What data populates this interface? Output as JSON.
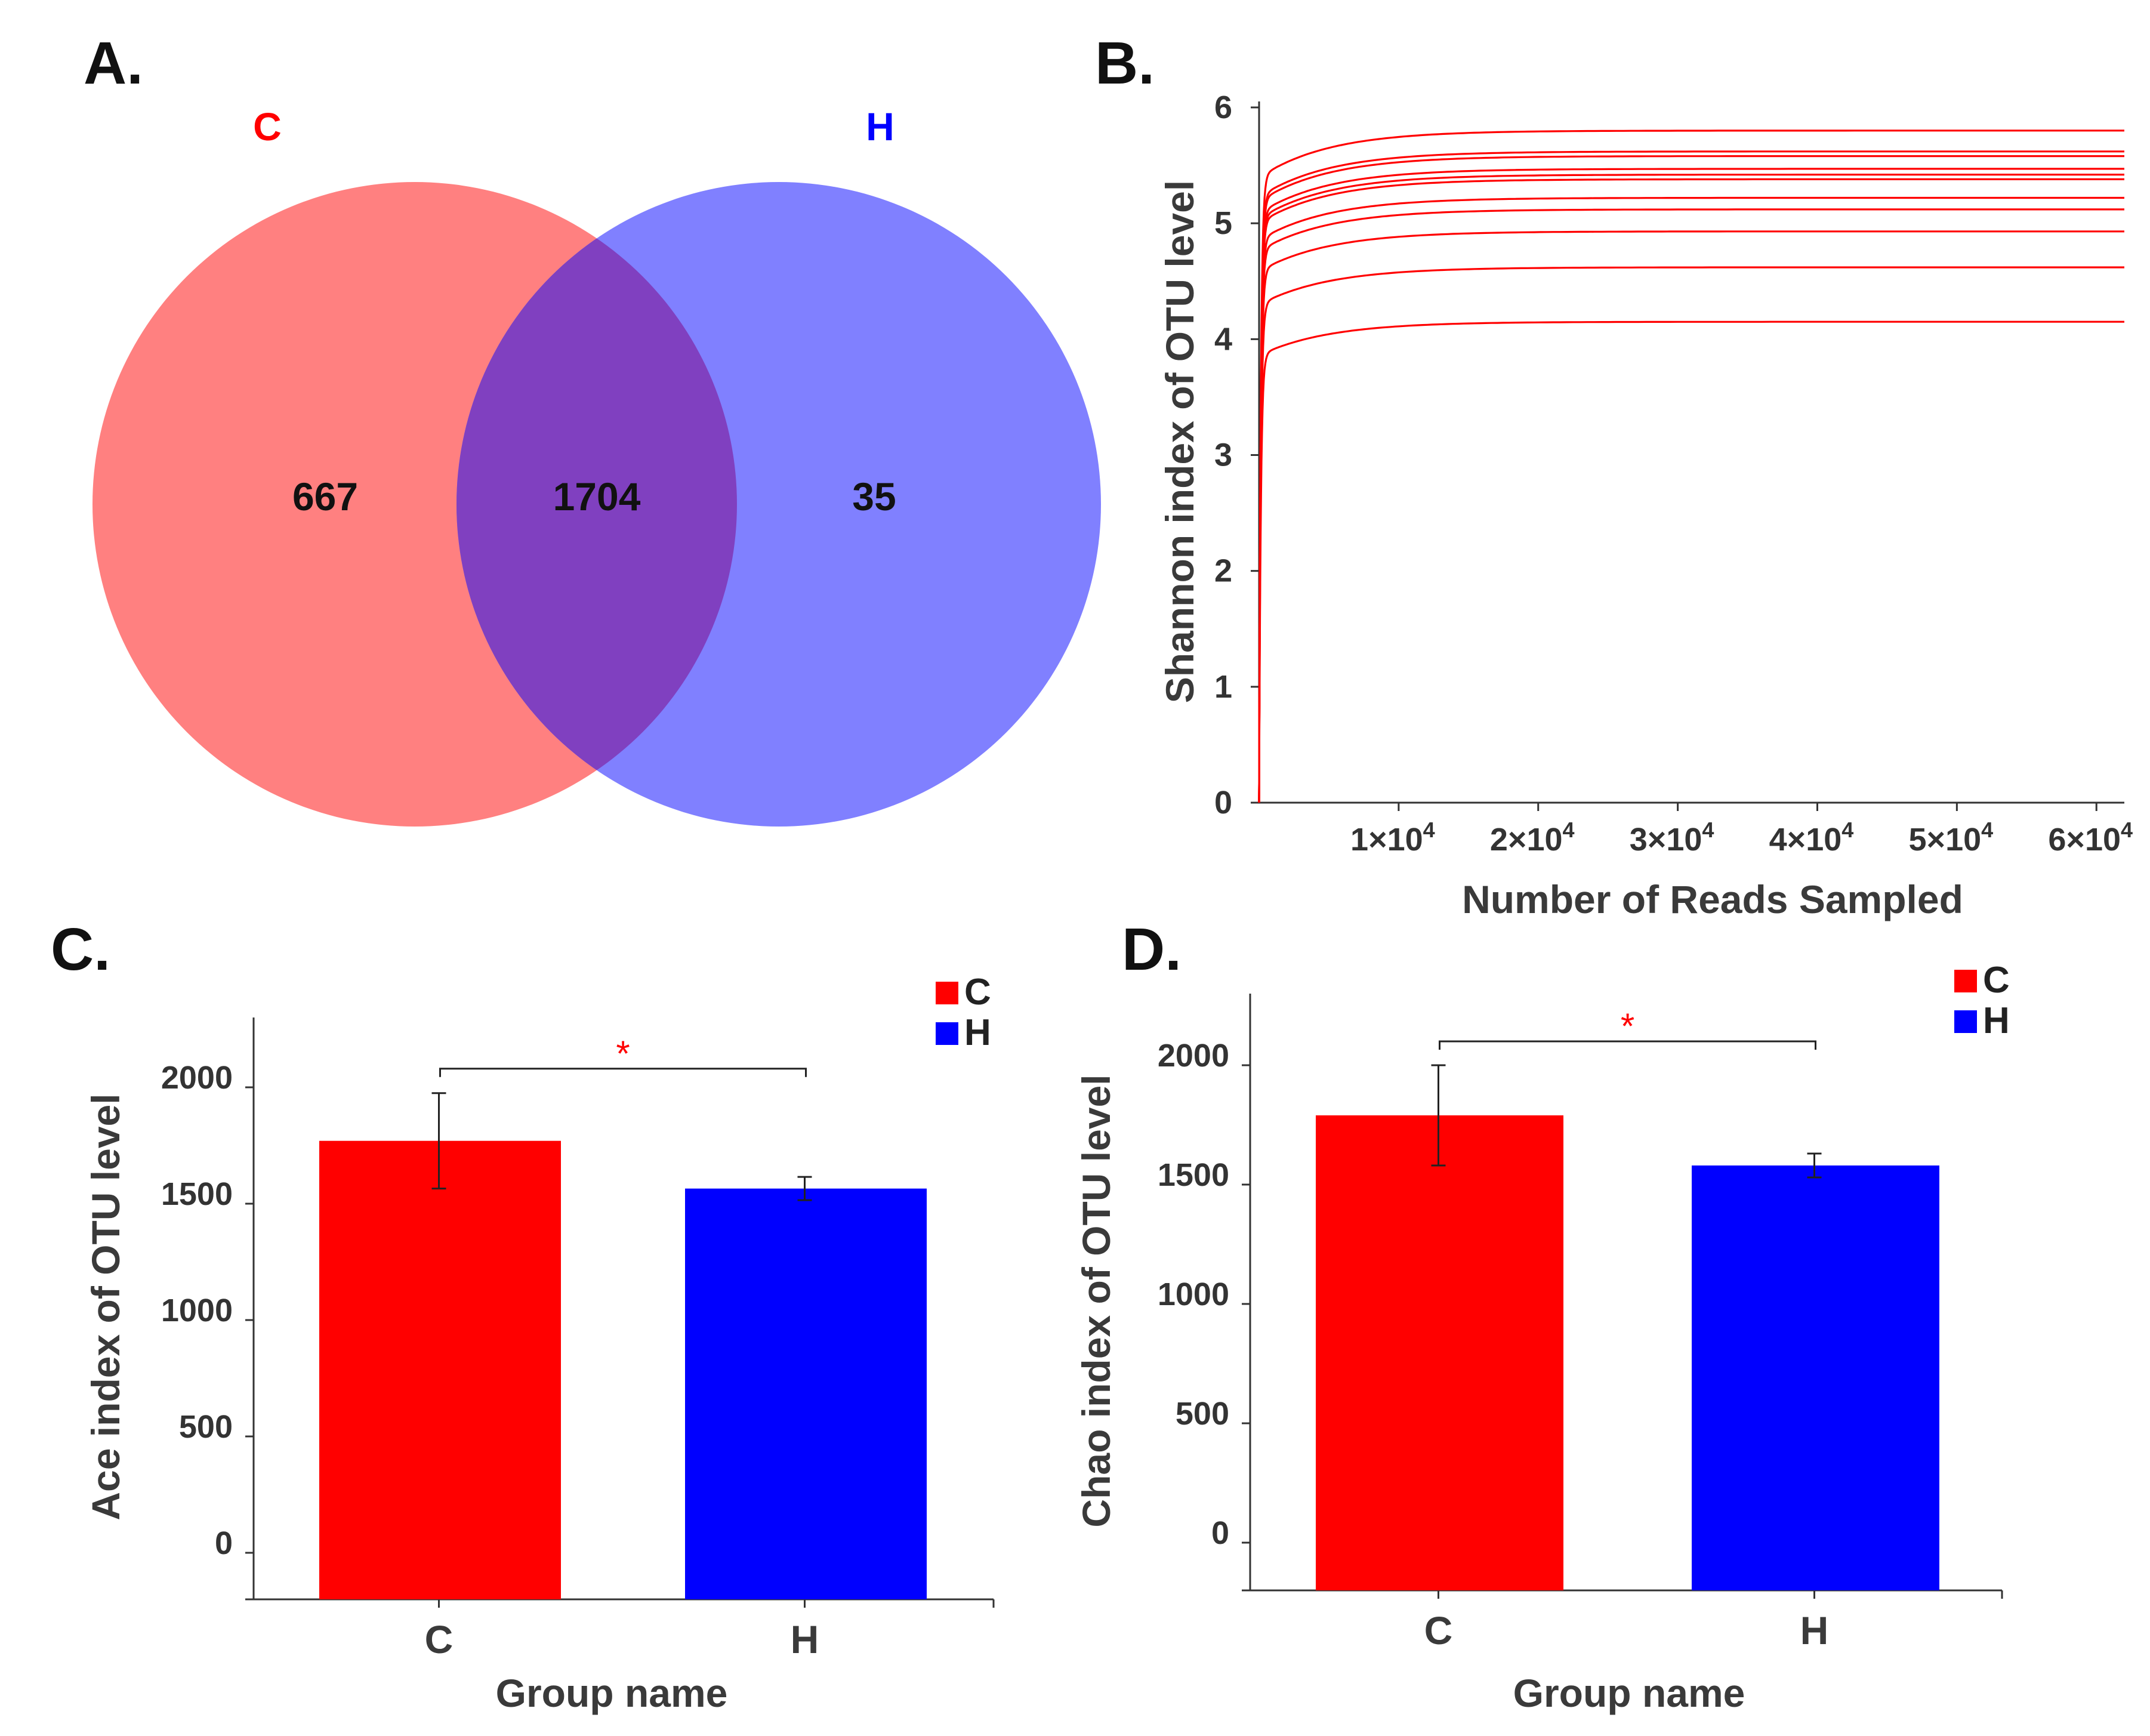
{
  "colors": {
    "red": "#ff0000",
    "blue": "#0000ff",
    "venn_c": "#ff8080",
    "venn_h": "#8080ff",
    "venn_overlap": "#8040c0",
    "set_c_label": "#ff0000",
    "set_h_label": "#0000ff"
  },
  "panel_labels": {
    "a": "A.",
    "b": "B.",
    "c": "C.",
    "d": "D."
  },
  "chart_data": [
    {
      "panel": "A",
      "type": "venn",
      "sets": [
        {
          "name": "C",
          "only": "667"
        },
        {
          "name": "H",
          "only": "35"
        }
      ],
      "overlap": "1704"
    },
    {
      "panel": "B",
      "type": "line",
      "title": "",
      "xlabel": "Number of Reads Sampled",
      "ylabel": "Shannon index of OTU level",
      "xlim": [
        0,
        62000
      ],
      "ylim": [
        0,
        6
      ],
      "x_ticks": [
        {
          "value": 10000,
          "label": "1×10",
          "exp": "4"
        },
        {
          "value": 20000,
          "label": "2×10",
          "exp": "4"
        },
        {
          "value": 30000,
          "label": "3×10",
          "exp": "4"
        },
        {
          "value": 40000,
          "label": "4×10",
          "exp": "4"
        },
        {
          "value": 50000,
          "label": "5×10",
          "exp": "4"
        },
        {
          "value": 60000,
          "label": "6×10",
          "exp": "4"
        }
      ],
      "y_ticks": [
        "0",
        "1",
        "2",
        "3",
        "4",
        "5",
        "6"
      ],
      "series_plateaus": [
        5.8,
        5.62,
        5.58,
        5.47,
        5.42,
        5.38,
        5.22,
        5.12,
        4.93,
        4.62,
        4.15
      ],
      "grid": false,
      "legend": false
    },
    {
      "panel": "C",
      "type": "bar",
      "categories": [
        "C",
        "H"
      ],
      "values": [
        1770,
        1565
      ],
      "errors": [
        205,
        50
      ],
      "xlabel": "Group name",
      "ylabel": "Ace index of OTU level",
      "ylim": [
        -200,
        2300
      ],
      "y_ticks": [
        "0",
        "500",
        "1000",
        "1500",
        "2000"
      ],
      "legend": [
        "C",
        "H"
      ],
      "significance": "*",
      "significance_level": 2080
    },
    {
      "panel": "D",
      "type": "bar",
      "categories": [
        "C",
        "H"
      ],
      "values": [
        1790,
        1580
      ],
      "errors": [
        210,
        50
      ],
      "xlabel": "Group name",
      "ylabel": "Chao index of  OTU level",
      "ylim": [
        -200,
        2300
      ],
      "y_ticks": [
        "0",
        "500",
        "1000",
        "1500",
        "2000"
      ],
      "legend": [
        "C",
        "H"
      ],
      "significance": "*",
      "significance_level": 2100
    }
  ]
}
